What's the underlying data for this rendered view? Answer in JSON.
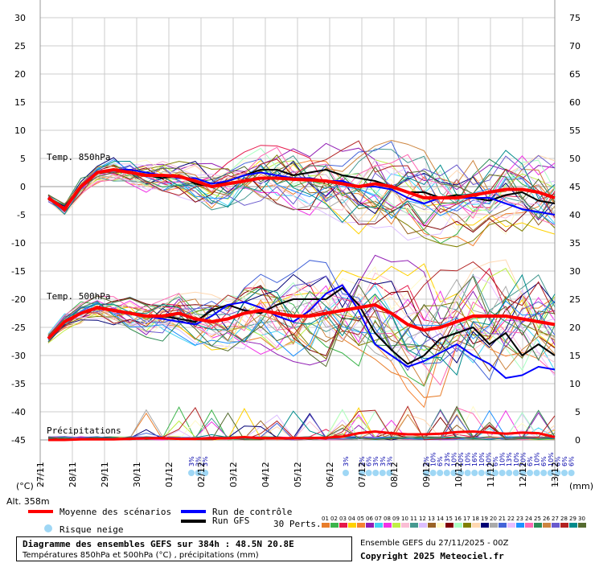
{
  "chart_data": {
    "type": "line",
    "left_axis_ticks": [
      "30",
      "25",
      "20",
      "15",
      "10",
      "5",
      "0",
      "-5",
      "-10",
      "-15",
      "-20",
      "-25",
      "-30",
      "-35",
      "-40",
      "-45"
    ],
    "right_axis_ticks": [
      "75",
      "70",
      "65",
      "60",
      "55",
      "50",
      "45",
      "40",
      "35",
      "30",
      "25",
      "20",
      "15",
      "10",
      "5",
      "0"
    ],
    "x_ticks": [
      "27/11",
      "28/11",
      "29/11",
      "30/11",
      "01/12",
      "02/12",
      "03/12",
      "04/12",
      "05/12",
      "06/12",
      "07/12",
      "08/12",
      "09/12",
      "10/12",
      "11/12",
      "12/12",
      "13/12"
    ],
    "left_unit": "(°C)",
    "right_unit": "(mm)",
    "altitude": "Alt. 358m",
    "panel_labels": [
      "Temp. 850hPa",
      "Temp. 500hPa",
      "Précipitations"
    ],
    "ylim_left": [
      -45,
      30
    ],
    "ylim_right": [
      0,
      75
    ],
    "mean_t850": [
      -2,
      -4,
      0,
      2.5,
      3,
      2.5,
      2,
      2,
      1.8,
      1,
      0,
      0.5,
      1,
      1.5,
      1.5,
      1.3,
      1.2,
      1,
      0.5,
      0,
      0.5,
      0,
      -1,
      -2,
      -2,
      -2,
      -1.5,
      -1,
      -0.5,
      -0.5,
      -1,
      -2
    ],
    "control_t850": [
      -2,
      -4,
      0,
      2.5,
      3,
      3,
      2.5,
      2,
      1.5,
      1.5,
      0.5,
      1,
      2,
      2.5,
      2,
      1.5,
      1.5,
      1,
      1,
      0,
      0,
      -0.5,
      -2,
      -3,
      -2,
      -2,
      -2,
      -2,
      -3,
      -4,
      -4.5,
      -5
    ],
    "gfs_t850": [
      -2,
      -4,
      0,
      2.5,
      3,
      2.5,
      2,
      1.5,
      2,
      0.5,
      0,
      1,
      2,
      3,
      3,
      2,
      2.5,
      3,
      2,
      1.5,
      1,
      0,
      -1,
      -1,
      -2,
      -1.5,
      -2,
      -2.5,
      -1.5,
      -1,
      -2.5,
      -3
    ],
    "mean_t500": [
      -27,
      -24,
      -22.5,
      -21.5,
      -22,
      -22.5,
      -23,
      -23,
      -22.5,
      -23.5,
      -24,
      -23.5,
      -22.5,
      -22,
      -22.5,
      -23,
      -23,
      -22.5,
      -22,
      -21.5,
      -21,
      -22.5,
      -24.5,
      -25.5,
      -25,
      -24,
      -23,
      -23,
      -23,
      -23.5,
      -24,
      -24.5
    ],
    "control_t500": [
      -27,
      -24,
      -22.5,
      -21.5,
      -22,
      -22.5,
      -23,
      -23.5,
      -24,
      -24.5,
      -23,
      -21,
      -20.5,
      -21.5,
      -23,
      -24,
      -22,
      -19,
      -17.5,
      -22,
      -28,
      -30,
      -32,
      -31,
      -29.5,
      -28,
      -30,
      -31.5,
      -34,
      -33.5,
      -32,
      -32.5
    ],
    "gfs_t500": [
      -27,
      -24,
      -22.5,
      -21.5,
      -22,
      -22.5,
      -23,
      -23,
      -23.5,
      -24,
      -22,
      -21,
      -22,
      -22.5,
      -21,
      -20,
      -20,
      -20,
      -18,
      -21,
      -26,
      -29,
      -31.5,
      -30,
      -27,
      -26,
      -25,
      -28,
      -26,
      -30,
      -28,
      -30
    ],
    "mean_precip": [
      0,
      0,
      0.1,
      0.1,
      0.1,
      0.2,
      0.3,
      0.3,
      0.2,
      0.2,
      0.3,
      0.3,
      0.5,
      0.3,
      0.3,
      0.3,
      0.3,
      0.4,
      0.6,
      1.2,
      1.5,
      1.2,
      1.0,
      1.0,
      1.1,
      1.4,
      1.5,
      1.3,
      1.1,
      1.3,
      1.2,
      0.5
    ],
    "snow_risk": [
      {
        "time": "02/12",
        "values": [
          "3%",
          "3%",
          "3%"
        ]
      },
      {
        "time": "06/12",
        "values": [
          "3%"
        ]
      },
      {
        "time": "07/12",
        "values": [
          "3%",
          "6%",
          "3%",
          "3%",
          "3%"
        ]
      },
      {
        "time": "09/12",
        "values": [
          "3%",
          "10%",
          "6%",
          "23%",
          "10%",
          "10%",
          "10%",
          "16%",
          "10%",
          "10%",
          "6%",
          "10%",
          "13%",
          "10%",
          "10%",
          "6%",
          "10%",
          "6%",
          "10%",
          "6%",
          "6%",
          "6%"
        ]
      }
    ],
    "legend": {
      "mean": "Moyenne des scénarios",
      "control": "Run de contrôle",
      "gfs": "Run GFS",
      "snow": "Risque neige",
      "perts_label": "30 Perts."
    },
    "pert_numbers": [
      "01",
      "02",
      "03",
      "04",
      "05",
      "06",
      "07",
      "08",
      "09",
      "10",
      "11",
      "12",
      "13",
      "14",
      "15",
      "16",
      "17",
      "18",
      "19",
      "20",
      "21",
      "22",
      "23",
      "24",
      "25",
      "26",
      "27",
      "28",
      "29",
      "30"
    ],
    "pert_colors": [
      "#e87d2a",
      "#3cb44b",
      "#e6194b",
      "#ffd200",
      "#f58231",
      "#911eb4",
      "#42d4f4",
      "#f032e6",
      "#bfef45",
      "#fabed4",
      "#469990",
      "#dcbeff",
      "#9a6324",
      "#fffac8",
      "#800000",
      "#aaffc3",
      "#808000",
      "#ffd8b1",
      "#000075",
      "#a9a9a9",
      "#4363d8",
      "#e6beff",
      "#1e90ff",
      "#ff69b4",
      "#2e8b57",
      "#cd853f",
      "#6a5acd",
      "#b22222",
      "#008b8b",
      "#556b2f"
    ],
    "mean_color": "#ff0000",
    "control_color": "#0000ff",
    "gfs_color": "#000000"
  },
  "footer": {
    "title": "Diagramme des ensembles GEFS sur 384h : 48.5N 20.8E",
    "subtitle": "Températures 850hPa et 500hPa (°C) , précipitations (mm)",
    "run": "Ensemble GEFS du 27/11/2025 - 00Z",
    "copyright": "Copyright 2025 Meteociel.fr"
  }
}
